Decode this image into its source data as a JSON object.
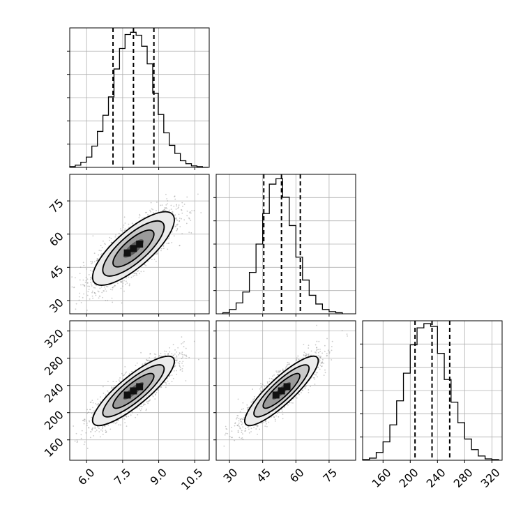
{
  "chart_data": {
    "type": "corner",
    "parameters": [
      {
        "index": 0,
        "range": [
          5.3,
          11.1
        ],
        "ticks": [
          6.0,
          7.5,
          9.0,
          10.5
        ],
        "tick_labels": [
          "6.0",
          "7.5",
          "9.0",
          "10.5"
        ],
        "quantiles": [
          7.1,
          7.95,
          8.8
        ],
        "histogram": {
          "bin_edges": [
            5.3,
            5.53,
            5.76,
            5.99,
            6.22,
            6.45,
            6.68,
            6.91,
            7.14,
            7.37,
            7.6,
            7.83,
            8.06,
            8.29,
            8.52,
            8.75,
            8.98,
            9.21,
            9.44,
            9.67,
            9.9,
            10.13,
            10.36,
            10.59,
            10.82,
            11.05
          ],
          "counts": [
            1,
            3,
            7,
            14,
            29,
            49,
            71,
            96,
            134,
            162,
            181,
            184,
            180,
            165,
            141,
            101,
            72,
            47,
            30,
            19,
            9,
            5,
            2,
            1,
            0
          ],
          "max": 190
        }
      },
      {
        "index": 1,
        "range": [
          24,
          87
        ],
        "ticks": [
          30,
          45,
          60,
          75
        ],
        "tick_labels": [
          "30",
          "45",
          "60",
          "75"
        ],
        "quantiles": [
          45.5,
          53.5,
          62
        ],
        "histogram": {
          "bin_edges": [
            27,
            30,
            33,
            36,
            39,
            42,
            45,
            48,
            51,
            54,
            57,
            60,
            63,
            66,
            69,
            72,
            75,
            78,
            81
          ],
          "counts": [
            1,
            4,
            10,
            20,
            38,
            64,
            92,
            119,
            124,
            107,
            81,
            52,
            31,
            17,
            9,
            4,
            2,
            1
          ],
          "max": 128
        }
      },
      {
        "index": 2,
        "range": [
          130,
          335
        ],
        "ticks": [
          160,
          200,
          240,
          280,
          320
        ],
        "tick_labels": [
          "160",
          "200",
          "240",
          "280",
          "320"
        ],
        "quantiles": [
          207,
          232,
          258
        ],
        "histogram": {
          "bin_edges": [
            130,
            140,
            150,
            160,
            170,
            180,
            190,
            200,
            210,
            220,
            230,
            240,
            250,
            260,
            270,
            280,
            290,
            300,
            310,
            320,
            330
          ],
          "counts": [
            1,
            3,
            11,
            26,
            50,
            84,
            123,
            163,
            187,
            193,
            189,
            151,
            114,
            82,
            53,
            30,
            15,
            6,
            2,
            1
          ],
          "max": 197
        }
      }
    ],
    "pairs": [
      {
        "x": 0,
        "y": 1,
        "center": [
          7.95,
          53.5
        ],
        "sd": [
          0.85,
          8.3
        ],
        "rho": 0.78
      },
      {
        "x": 0,
        "y": 2,
        "center": [
          7.95,
          232
        ],
        "sd": [
          0.85,
          25.5
        ],
        "rho": 0.85
      },
      {
        "x": 1,
        "y": 2,
        "center": [
          53.5,
          232
        ],
        "sd": [
          8.3,
          25.5
        ],
        "rho": 0.87
      }
    ],
    "contour_levels_sigma": [
      0.5,
      1.0,
      1.5,
      2.0
    ],
    "grid": true,
    "quantile_line_style": "dashed",
    "histogram_style": "step"
  }
}
